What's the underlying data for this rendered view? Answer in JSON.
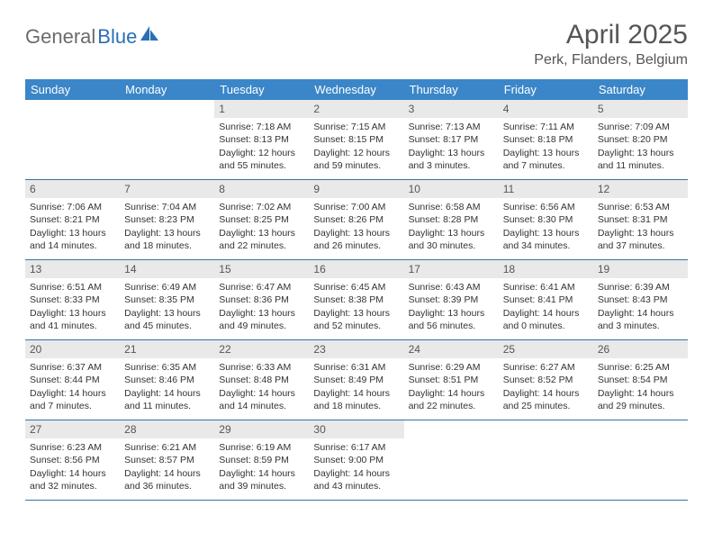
{
  "logo": {
    "text1": "General",
    "text2": "Blue",
    "iconColor": "#2a6fb5"
  },
  "header": {
    "title": "April 2025",
    "location": "Perk, Flanders, Belgium"
  },
  "colors": {
    "headerBg": "#3b86c8",
    "headerText": "#ffffff",
    "dayBarBg": "#e9e9e9",
    "rowBorder": "#3b6fa5",
    "titleText": "#555555",
    "bodyText": "#333333"
  },
  "weekdays": [
    "Sunday",
    "Monday",
    "Tuesday",
    "Wednesday",
    "Thursday",
    "Friday",
    "Saturday"
  ],
  "weeks": [
    [
      {
        "empty": true
      },
      {
        "empty": true
      },
      {
        "day": "1",
        "sunrise": "7:18 AM",
        "sunset": "8:13 PM",
        "daylight": "12 hours and 55 minutes."
      },
      {
        "day": "2",
        "sunrise": "7:15 AM",
        "sunset": "8:15 PM",
        "daylight": "12 hours and 59 minutes."
      },
      {
        "day": "3",
        "sunrise": "7:13 AM",
        "sunset": "8:17 PM",
        "daylight": "13 hours and 3 minutes."
      },
      {
        "day": "4",
        "sunrise": "7:11 AM",
        "sunset": "8:18 PM",
        "daylight": "13 hours and 7 minutes."
      },
      {
        "day": "5",
        "sunrise": "7:09 AM",
        "sunset": "8:20 PM",
        "daylight": "13 hours and 11 minutes."
      }
    ],
    [
      {
        "day": "6",
        "sunrise": "7:06 AM",
        "sunset": "8:21 PM",
        "daylight": "13 hours and 14 minutes."
      },
      {
        "day": "7",
        "sunrise": "7:04 AM",
        "sunset": "8:23 PM",
        "daylight": "13 hours and 18 minutes."
      },
      {
        "day": "8",
        "sunrise": "7:02 AM",
        "sunset": "8:25 PM",
        "daylight": "13 hours and 22 minutes."
      },
      {
        "day": "9",
        "sunrise": "7:00 AM",
        "sunset": "8:26 PM",
        "daylight": "13 hours and 26 minutes."
      },
      {
        "day": "10",
        "sunrise": "6:58 AM",
        "sunset": "8:28 PM",
        "daylight": "13 hours and 30 minutes."
      },
      {
        "day": "11",
        "sunrise": "6:56 AM",
        "sunset": "8:30 PM",
        "daylight": "13 hours and 34 minutes."
      },
      {
        "day": "12",
        "sunrise": "6:53 AM",
        "sunset": "8:31 PM",
        "daylight": "13 hours and 37 minutes."
      }
    ],
    [
      {
        "day": "13",
        "sunrise": "6:51 AM",
        "sunset": "8:33 PM",
        "daylight": "13 hours and 41 minutes."
      },
      {
        "day": "14",
        "sunrise": "6:49 AM",
        "sunset": "8:35 PM",
        "daylight": "13 hours and 45 minutes."
      },
      {
        "day": "15",
        "sunrise": "6:47 AM",
        "sunset": "8:36 PM",
        "daylight": "13 hours and 49 minutes."
      },
      {
        "day": "16",
        "sunrise": "6:45 AM",
        "sunset": "8:38 PM",
        "daylight": "13 hours and 52 minutes."
      },
      {
        "day": "17",
        "sunrise": "6:43 AM",
        "sunset": "8:39 PM",
        "daylight": "13 hours and 56 minutes."
      },
      {
        "day": "18",
        "sunrise": "6:41 AM",
        "sunset": "8:41 PM",
        "daylight": "14 hours and 0 minutes."
      },
      {
        "day": "19",
        "sunrise": "6:39 AM",
        "sunset": "8:43 PM",
        "daylight": "14 hours and 3 minutes."
      }
    ],
    [
      {
        "day": "20",
        "sunrise": "6:37 AM",
        "sunset": "8:44 PM",
        "daylight": "14 hours and 7 minutes."
      },
      {
        "day": "21",
        "sunrise": "6:35 AM",
        "sunset": "8:46 PM",
        "daylight": "14 hours and 11 minutes."
      },
      {
        "day": "22",
        "sunrise": "6:33 AM",
        "sunset": "8:48 PM",
        "daylight": "14 hours and 14 minutes."
      },
      {
        "day": "23",
        "sunrise": "6:31 AM",
        "sunset": "8:49 PM",
        "daylight": "14 hours and 18 minutes."
      },
      {
        "day": "24",
        "sunrise": "6:29 AM",
        "sunset": "8:51 PM",
        "daylight": "14 hours and 22 minutes."
      },
      {
        "day": "25",
        "sunrise": "6:27 AM",
        "sunset": "8:52 PM",
        "daylight": "14 hours and 25 minutes."
      },
      {
        "day": "26",
        "sunrise": "6:25 AM",
        "sunset": "8:54 PM",
        "daylight": "14 hours and 29 minutes."
      }
    ],
    [
      {
        "day": "27",
        "sunrise": "6:23 AM",
        "sunset": "8:56 PM",
        "daylight": "14 hours and 32 minutes."
      },
      {
        "day": "28",
        "sunrise": "6:21 AM",
        "sunset": "8:57 PM",
        "daylight": "14 hours and 36 minutes."
      },
      {
        "day": "29",
        "sunrise": "6:19 AM",
        "sunset": "8:59 PM",
        "daylight": "14 hours and 39 minutes."
      },
      {
        "day": "30",
        "sunrise": "6:17 AM",
        "sunset": "9:00 PM",
        "daylight": "14 hours and 43 minutes."
      },
      {
        "empty": true
      },
      {
        "empty": true
      },
      {
        "empty": true
      }
    ]
  ],
  "labels": {
    "sunrise": "Sunrise:",
    "sunset": "Sunset:",
    "daylight": "Daylight:"
  }
}
